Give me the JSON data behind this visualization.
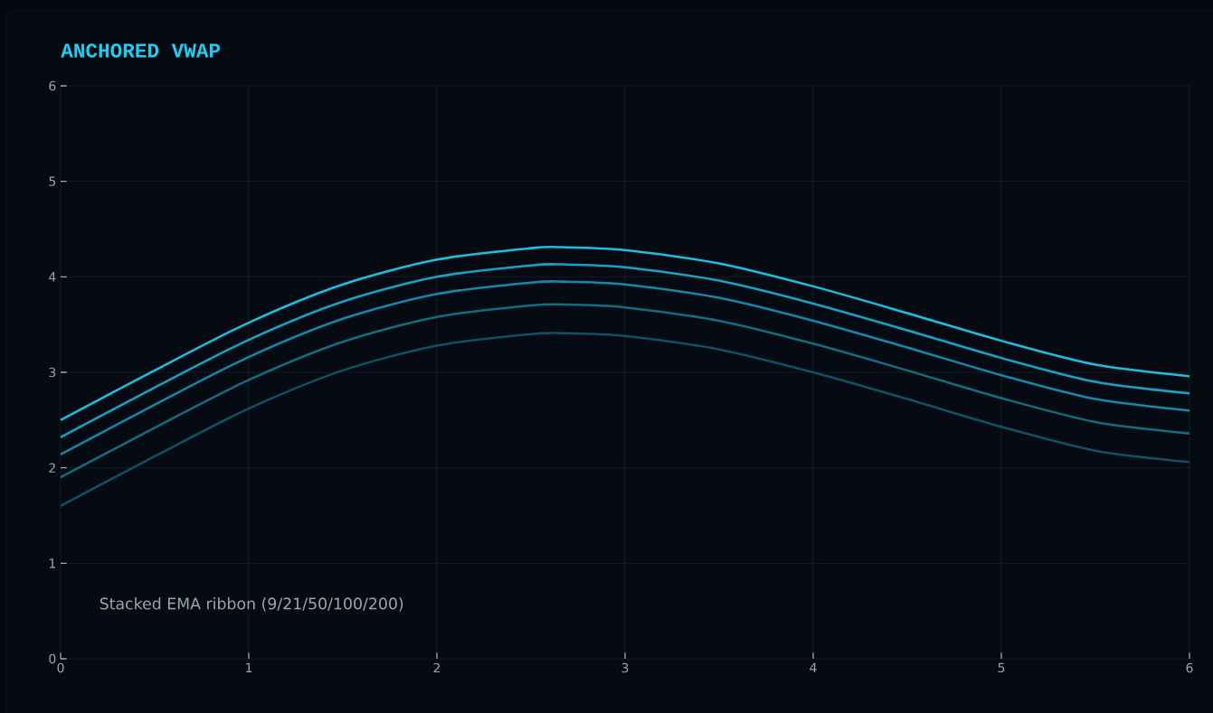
{
  "chart_data": {
    "type": "line",
    "title": "ANCHORED VWAP",
    "annotations": [
      "Stacked EMA ribbon (9/21/50/100/200)"
    ],
    "x": [
      0,
      0.5,
      1,
      1.5,
      2,
      2.5,
      2.67,
      3,
      3.5,
      4,
      4.5,
      5,
      5.5,
      6
    ],
    "series": [
      {
        "color": "#1bbfe0",
        "values": [
          2.5,
          3.02,
          3.52,
          3.92,
          4.18,
          4.3,
          4.31,
          4.28,
          4.14,
          3.9,
          3.62,
          3.33,
          3.08,
          2.96
        ]
      },
      {
        "color": "#17a3c4",
        "values": [
          2.32,
          2.84,
          3.34,
          3.74,
          4.0,
          4.12,
          4.13,
          4.1,
          3.96,
          3.72,
          3.44,
          3.15,
          2.9,
          2.78
        ]
      },
      {
        "color": "#1488a5",
        "values": [
          2.14,
          2.66,
          3.16,
          3.56,
          3.82,
          3.94,
          3.95,
          3.92,
          3.78,
          3.54,
          3.26,
          2.97,
          2.72,
          2.6
        ]
      },
      {
        "color": "#116c84",
        "values": [
          1.9,
          2.42,
          2.92,
          3.32,
          3.58,
          3.7,
          3.71,
          3.68,
          3.54,
          3.3,
          3.02,
          2.73,
          2.48,
          2.36
        ]
      },
      {
        "color": "#0e5265",
        "values": [
          1.6,
          2.12,
          2.62,
          3.02,
          3.28,
          3.4,
          3.41,
          3.38,
          3.24,
          3.0,
          2.72,
          2.43,
          2.18,
          2.06
        ]
      }
    ],
    "xlim": [
      0,
      6
    ],
    "ylim": [
      0,
      6
    ],
    "xticks": [
      0,
      1,
      2,
      3,
      4,
      5,
      6
    ],
    "yticks": [
      0,
      1,
      2,
      3,
      4,
      5,
      6
    ],
    "grid": true
  }
}
